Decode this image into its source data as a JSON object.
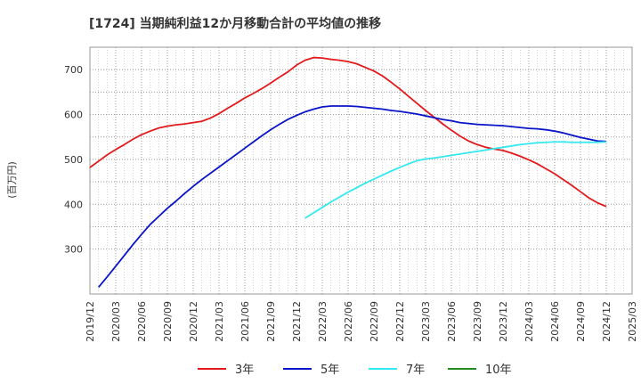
{
  "chart_data": {
    "type": "line",
    "title": "[1724]  当期純利益12か月移動合計の平均値の推移",
    "ylabel": "(百万円)",
    "xlabel": "",
    "ylim": [
      200,
      750
    ],
    "yticks": [
      300,
      400,
      500,
      600,
      700
    ],
    "xlim": [
      "2019-12",
      "2025-03"
    ],
    "xticks": [
      "2019/12",
      "2020/03",
      "2020/06",
      "2020/09",
      "2020/12",
      "2021/03",
      "2021/06",
      "2021/09",
      "2021/12",
      "2022/03",
      "2022/06",
      "2022/09",
      "2022/12",
      "2023/03",
      "2023/06",
      "2023/09",
      "2023/12",
      "2024/03",
      "2024/06",
      "2024/09",
      "2024/12",
      "2025/03"
    ],
    "grid": true,
    "legend_position": "bottom",
    "series": [
      {
        "name": "3年",
        "color": "#e31a1c",
        "points": [
          [
            "2019-12",
            482
          ],
          [
            "2020-01",
            496
          ],
          [
            "2020-02",
            510
          ],
          [
            "2020-03",
            522
          ],
          [
            "2020-04",
            533
          ],
          [
            "2020-05",
            545
          ],
          [
            "2020-06",
            555
          ],
          [
            "2020-07",
            563
          ],
          [
            "2020-08",
            570
          ],
          [
            "2020-09",
            574
          ],
          [
            "2020-10",
            577
          ],
          [
            "2020-11",
            579
          ],
          [
            "2020-12",
            582
          ],
          [
            "2021-01",
            585
          ],
          [
            "2021-02",
            592
          ],
          [
            "2021-03",
            602
          ],
          [
            "2021-04",
            614
          ],
          [
            "2021-05",
            625
          ],
          [
            "2021-06",
            637
          ],
          [
            "2021-07",
            647
          ],
          [
            "2021-08",
            658
          ],
          [
            "2021-09",
            670
          ],
          [
            "2021-10",
            683
          ],
          [
            "2021-11",
            695
          ],
          [
            "2021-12",
            710
          ],
          [
            "2022-01",
            721
          ],
          [
            "2022-02",
            727
          ],
          [
            "2022-03",
            726
          ],
          [
            "2022-04",
            723
          ],
          [
            "2022-05",
            721
          ],
          [
            "2022-06",
            718
          ],
          [
            "2022-07",
            713
          ],
          [
            "2022-08",
            705
          ],
          [
            "2022-09",
            697
          ],
          [
            "2022-10",
            686
          ],
          [
            "2022-11",
            672
          ],
          [
            "2022-12",
            657
          ],
          [
            "2023-01",
            641
          ],
          [
            "2023-02",
            625
          ],
          [
            "2023-03",
            609
          ],
          [
            "2023-04",
            594
          ],
          [
            "2023-05",
            579
          ],
          [
            "2023-06",
            565
          ],
          [
            "2023-07",
            552
          ],
          [
            "2023-08",
            541
          ],
          [
            "2023-09",
            533
          ],
          [
            "2023-10",
            527
          ],
          [
            "2023-11",
            523
          ],
          [
            "2023-12",
            520
          ],
          [
            "2024-01",
            514
          ],
          [
            "2024-02",
            507
          ],
          [
            "2024-03",
            499
          ],
          [
            "2024-04",
            490
          ],
          [
            "2024-05",
            479
          ],
          [
            "2024-06",
            468
          ],
          [
            "2024-07",
            455
          ],
          [
            "2024-08",
            442
          ],
          [
            "2024-09",
            428
          ],
          [
            "2024-10",
            414
          ],
          [
            "2024-11",
            403
          ],
          [
            "2024-12",
            395
          ]
        ]
      },
      {
        "name": "5年",
        "color": "#0a14c8",
        "points": [
          [
            "2020-01",
            215
          ],
          [
            "2020-02",
            238
          ],
          [
            "2020-03",
            262
          ],
          [
            "2020-04",
            286
          ],
          [
            "2020-05",
            310
          ],
          [
            "2020-06",
            333
          ],
          [
            "2020-07",
            355
          ],
          [
            "2020-08",
            373
          ],
          [
            "2020-09",
            391
          ],
          [
            "2020-10",
            407
          ],
          [
            "2020-11",
            424
          ],
          [
            "2020-12",
            440
          ],
          [
            "2021-01",
            455
          ],
          [
            "2021-02",
            469
          ],
          [
            "2021-03",
            483
          ],
          [
            "2021-04",
            497
          ],
          [
            "2021-05",
            511
          ],
          [
            "2021-06",
            525
          ],
          [
            "2021-07",
            539
          ],
          [
            "2021-08",
            553
          ],
          [
            "2021-09",
            566
          ],
          [
            "2021-10",
            578
          ],
          [
            "2021-11",
            589
          ],
          [
            "2021-12",
            598
          ],
          [
            "2022-01",
            606
          ],
          [
            "2022-02",
            612
          ],
          [
            "2022-03",
            617
          ],
          [
            "2022-04",
            619
          ],
          [
            "2022-05",
            619
          ],
          [
            "2022-06",
            619
          ],
          [
            "2022-07",
            618
          ],
          [
            "2022-08",
            616
          ],
          [
            "2022-09",
            614
          ],
          [
            "2022-10",
            612
          ],
          [
            "2022-11",
            609
          ],
          [
            "2022-12",
            607
          ],
          [
            "2023-01",
            604
          ],
          [
            "2023-02",
            601
          ],
          [
            "2023-03",
            597
          ],
          [
            "2023-04",
            593
          ],
          [
            "2023-05",
            589
          ],
          [
            "2023-06",
            586
          ],
          [
            "2023-07",
            582
          ],
          [
            "2023-08",
            580
          ],
          [
            "2023-09",
            578
          ],
          [
            "2023-10",
            577
          ],
          [
            "2023-11",
            576
          ],
          [
            "2023-12",
            575
          ],
          [
            "2024-01",
            573
          ],
          [
            "2024-02",
            571
          ],
          [
            "2024-03",
            569
          ],
          [
            "2024-04",
            568
          ],
          [
            "2024-05",
            566
          ],
          [
            "2024-06",
            563
          ],
          [
            "2024-07",
            559
          ],
          [
            "2024-08",
            554
          ],
          [
            "2024-09",
            549
          ],
          [
            "2024-10",
            545
          ],
          [
            "2024-11",
            541
          ],
          [
            "2024-12",
            540
          ]
        ]
      },
      {
        "name": "7年",
        "color": "#33e8f0",
        "points": [
          [
            "2022-01",
            369
          ],
          [
            "2022-02",
            381
          ],
          [
            "2022-03",
            393
          ],
          [
            "2022-04",
            405
          ],
          [
            "2022-05",
            416
          ],
          [
            "2022-06",
            427
          ],
          [
            "2022-07",
            437
          ],
          [
            "2022-08",
            447
          ],
          [
            "2022-09",
            456
          ],
          [
            "2022-10",
            465
          ],
          [
            "2022-11",
            474
          ],
          [
            "2022-12",
            482
          ],
          [
            "2023-01",
            490
          ],
          [
            "2023-02",
            497
          ],
          [
            "2023-03",
            501
          ],
          [
            "2023-04",
            503
          ],
          [
            "2023-05",
            506
          ],
          [
            "2023-06",
            509
          ],
          [
            "2023-07",
            512
          ],
          [
            "2023-08",
            515
          ],
          [
            "2023-09",
            518
          ],
          [
            "2023-10",
            521
          ],
          [
            "2023-11",
            524
          ],
          [
            "2023-12",
            527
          ],
          [
            "2024-01",
            530
          ],
          [
            "2024-02",
            533
          ],
          [
            "2024-03",
            535
          ],
          [
            "2024-04",
            537
          ],
          [
            "2024-05",
            538
          ],
          [
            "2024-06",
            539
          ],
          [
            "2024-07",
            539
          ],
          [
            "2024-08",
            538
          ],
          [
            "2024-09",
            538
          ],
          [
            "2024-10",
            538
          ],
          [
            "2024-11",
            538
          ],
          [
            "2024-12",
            539
          ]
        ]
      },
      {
        "name": "10年",
        "color": "#228b22",
        "points": []
      }
    ]
  }
}
